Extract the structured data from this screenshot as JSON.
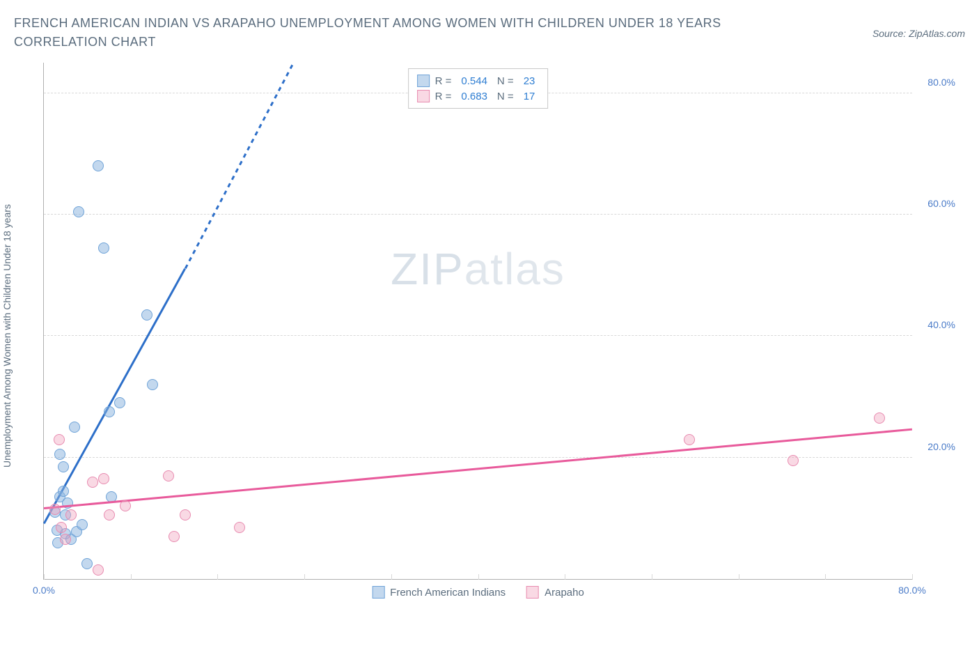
{
  "title": "FRENCH AMERICAN INDIAN VS ARAPAHO UNEMPLOYMENT AMONG WOMEN WITH CHILDREN UNDER 18 YEARS CORRELATION CHART",
  "source": "Source: ZipAtlas.com",
  "y_axis_label": "Unemployment Among Women with Children Under 18 years",
  "watermark_bold": "ZIP",
  "watermark_thin": "atlas",
  "chart": {
    "type": "scatter",
    "xlim": [
      0,
      80
    ],
    "ylim": [
      0,
      85
    ],
    "x_ticks": [
      0,
      40,
      80
    ],
    "x_tick_labels": [
      "0.0%",
      "",
      "80.0%"
    ],
    "y_ticks": [
      20,
      40,
      60,
      80
    ],
    "y_tick_labels": [
      "20.0%",
      "40.0%",
      "60.0%",
      "80.0%"
    ],
    "x_minor_ticks": [
      8,
      16,
      24,
      32,
      48,
      56,
      64,
      72
    ],
    "background_color": "#ffffff",
    "grid_color": "#d8d8d8",
    "axis_color": "#b0b0b0",
    "tick_label_color": "#4a7bc8",
    "label_color": "#5a6c7d",
    "label_fontsize": 14,
    "tick_fontsize": 14,
    "marker_size": 16,
    "series": [
      {
        "name": "French American Indians",
        "marker_color_fill": "rgba(135,178,222,0.5)",
        "marker_color_stroke": "#6fa3d8",
        "trend_color": "#2d6fc9",
        "trend_width": 2.5,
        "R": "0.544",
        "N": "23",
        "trend": {
          "x1": 0,
          "y1": 9,
          "x2_solid": 13,
          "y2_solid": 51,
          "x2_dash": 23,
          "y2_dash": 85
        },
        "points": [
          {
            "x": 1,
            "y": 11
          },
          {
            "x": 1.5,
            "y": 20.5
          },
          {
            "x": 1.8,
            "y": 18.5
          },
          {
            "x": 1.2,
            "y": 8
          },
          {
            "x": 2,
            "y": 7.5
          },
          {
            "x": 2.5,
            "y": 6.5
          },
          {
            "x": 3,
            "y": 7.8
          },
          {
            "x": 1.5,
            "y": 13.5
          },
          {
            "x": 2.2,
            "y": 12.5
          },
          {
            "x": 2.8,
            "y": 25
          },
          {
            "x": 3.2,
            "y": 60.5
          },
          {
            "x": 5,
            "y": 68
          },
          {
            "x": 5.5,
            "y": 54.5
          },
          {
            "x": 6,
            "y": 27.5
          },
          {
            "x": 6.2,
            "y": 13.5
          },
          {
            "x": 7,
            "y": 29
          },
          {
            "x": 4,
            "y": 2.5
          },
          {
            "x": 9.5,
            "y": 43.5
          },
          {
            "x": 10,
            "y": 32
          },
          {
            "x": 3.5,
            "y": 9
          },
          {
            "x": 2,
            "y": 10.5
          },
          {
            "x": 1.3,
            "y": 6
          },
          {
            "x": 1.8,
            "y": 14.5
          }
        ]
      },
      {
        "name": "Arapaho",
        "marker_color_fill": "rgba(240,160,188,0.4)",
        "marker_color_stroke": "#e88bb0",
        "trend_color": "#e85a9b",
        "trend_width": 2.5,
        "R": "0.683",
        "N": "17",
        "trend": {
          "x1": 0,
          "y1": 11.5,
          "x2_solid": 80,
          "y2_solid": 24.5
        },
        "points": [
          {
            "x": 1,
            "y": 11.5
          },
          {
            "x": 1.4,
            "y": 23
          },
          {
            "x": 1.6,
            "y": 8.5
          },
          {
            "x": 2.5,
            "y": 10.5
          },
          {
            "x": 4.5,
            "y": 16
          },
          {
            "x": 5.5,
            "y": 16.5
          },
          {
            "x": 5,
            "y": 1.5
          },
          {
            "x": 6,
            "y": 10.5
          },
          {
            "x": 7.5,
            "y": 12
          },
          {
            "x": 11.5,
            "y": 17
          },
          {
            "x": 12,
            "y": 7
          },
          {
            "x": 13,
            "y": 10.5
          },
          {
            "x": 18,
            "y": 8.5
          },
          {
            "x": 59.5,
            "y": 23
          },
          {
            "x": 69,
            "y": 19.5
          },
          {
            "x": 77,
            "y": 26.5
          },
          {
            "x": 2,
            "y": 6.5
          }
        ]
      }
    ]
  },
  "legend_top": {
    "r_label": "R =",
    "n_label": "N ="
  },
  "legend_bottom": {
    "item1": "French American Indians",
    "item2": "Arapaho"
  }
}
